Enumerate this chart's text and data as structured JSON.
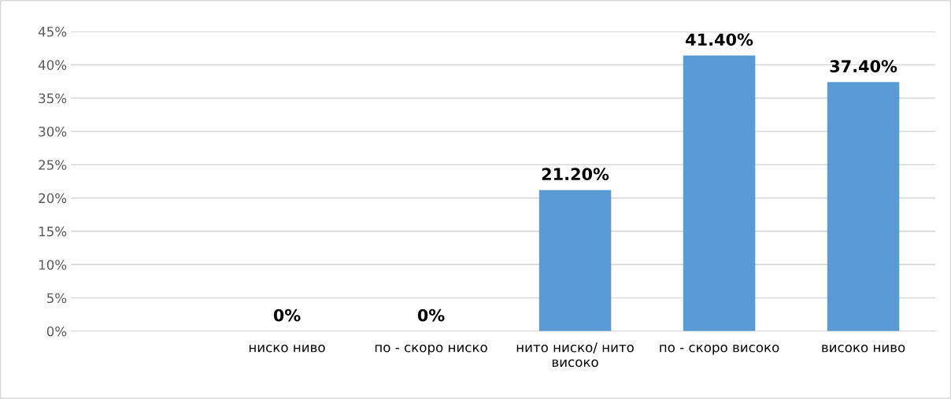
{
  "chart_data": {
    "type": "bar",
    "categories": [
      null,
      "ниско ниво",
      "по - скоро ниско",
      "нито ниско/ нито\nвисоко",
      "по - скоро високо",
      "високо ниво"
    ],
    "values": [
      null,
      0,
      0,
      21.2,
      41.4,
      37.4
    ],
    "value_labels": [
      null,
      "0%",
      "0%",
      "21.20%",
      "41.40%",
      "37.40%"
    ],
    "color": "#5b9bd5",
    "ylim": [
      0,
      45
    ],
    "yticks": [
      {
        "value": 0,
        "label": "0%"
      },
      {
        "value": 5,
        "label": "5%"
      },
      {
        "value": 10,
        "label": "10%"
      },
      {
        "value": 15,
        "label": "15%"
      },
      {
        "value": 20,
        "label": "20%"
      },
      {
        "value": 25,
        "label": "25%"
      },
      {
        "value": 30,
        "label": "30%"
      },
      {
        "value": 35,
        "label": "35%"
      },
      {
        "value": 40,
        "label": "40%"
      },
      {
        "value": 45,
        "label": "45%"
      }
    ],
    "grid": "y",
    "legend": false
  }
}
